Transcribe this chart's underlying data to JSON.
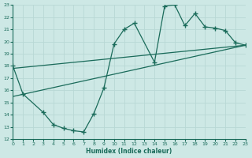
{
  "xlabel": "Humidex (Indice chaleur)",
  "xlim": [
    0,
    23
  ],
  "ylim": [
    12,
    23
  ],
  "yticks": [
    12,
    13,
    14,
    15,
    16,
    17,
    18,
    19,
    20,
    21,
    22,
    23
  ],
  "xticks": [
    0,
    1,
    2,
    3,
    4,
    5,
    6,
    7,
    8,
    9,
    10,
    11,
    12,
    13,
    14,
    15,
    16,
    17,
    18,
    19,
    20,
    21,
    22,
    23
  ],
  "bg_color": "#cde8e5",
  "line_color": "#1a6b5a",
  "grid_color": "#b8d8d5",
  "line1_x": [
    0,
    1,
    3,
    4,
    5,
    6,
    7,
    8,
    9,
    10,
    11,
    12,
    14,
    15,
    16,
    17,
    18,
    19,
    20,
    21,
    22,
    23
  ],
  "line1_y": [
    18,
    15.7,
    14.2,
    13.2,
    12.9,
    12.7,
    12.6,
    14.1,
    16.2,
    19.8,
    21.0,
    21.5,
    18.3,
    22.9,
    23.0,
    21.3,
    22.3,
    21.2,
    21.1,
    20.9,
    19.9,
    19.7
  ],
  "line2_x": [
    0,
    23
  ],
  "line2_y": [
    15.5,
    19.7
  ],
  "line3_x": [
    0,
    23
  ],
  "line3_y": [
    17.8,
    19.7
  ]
}
